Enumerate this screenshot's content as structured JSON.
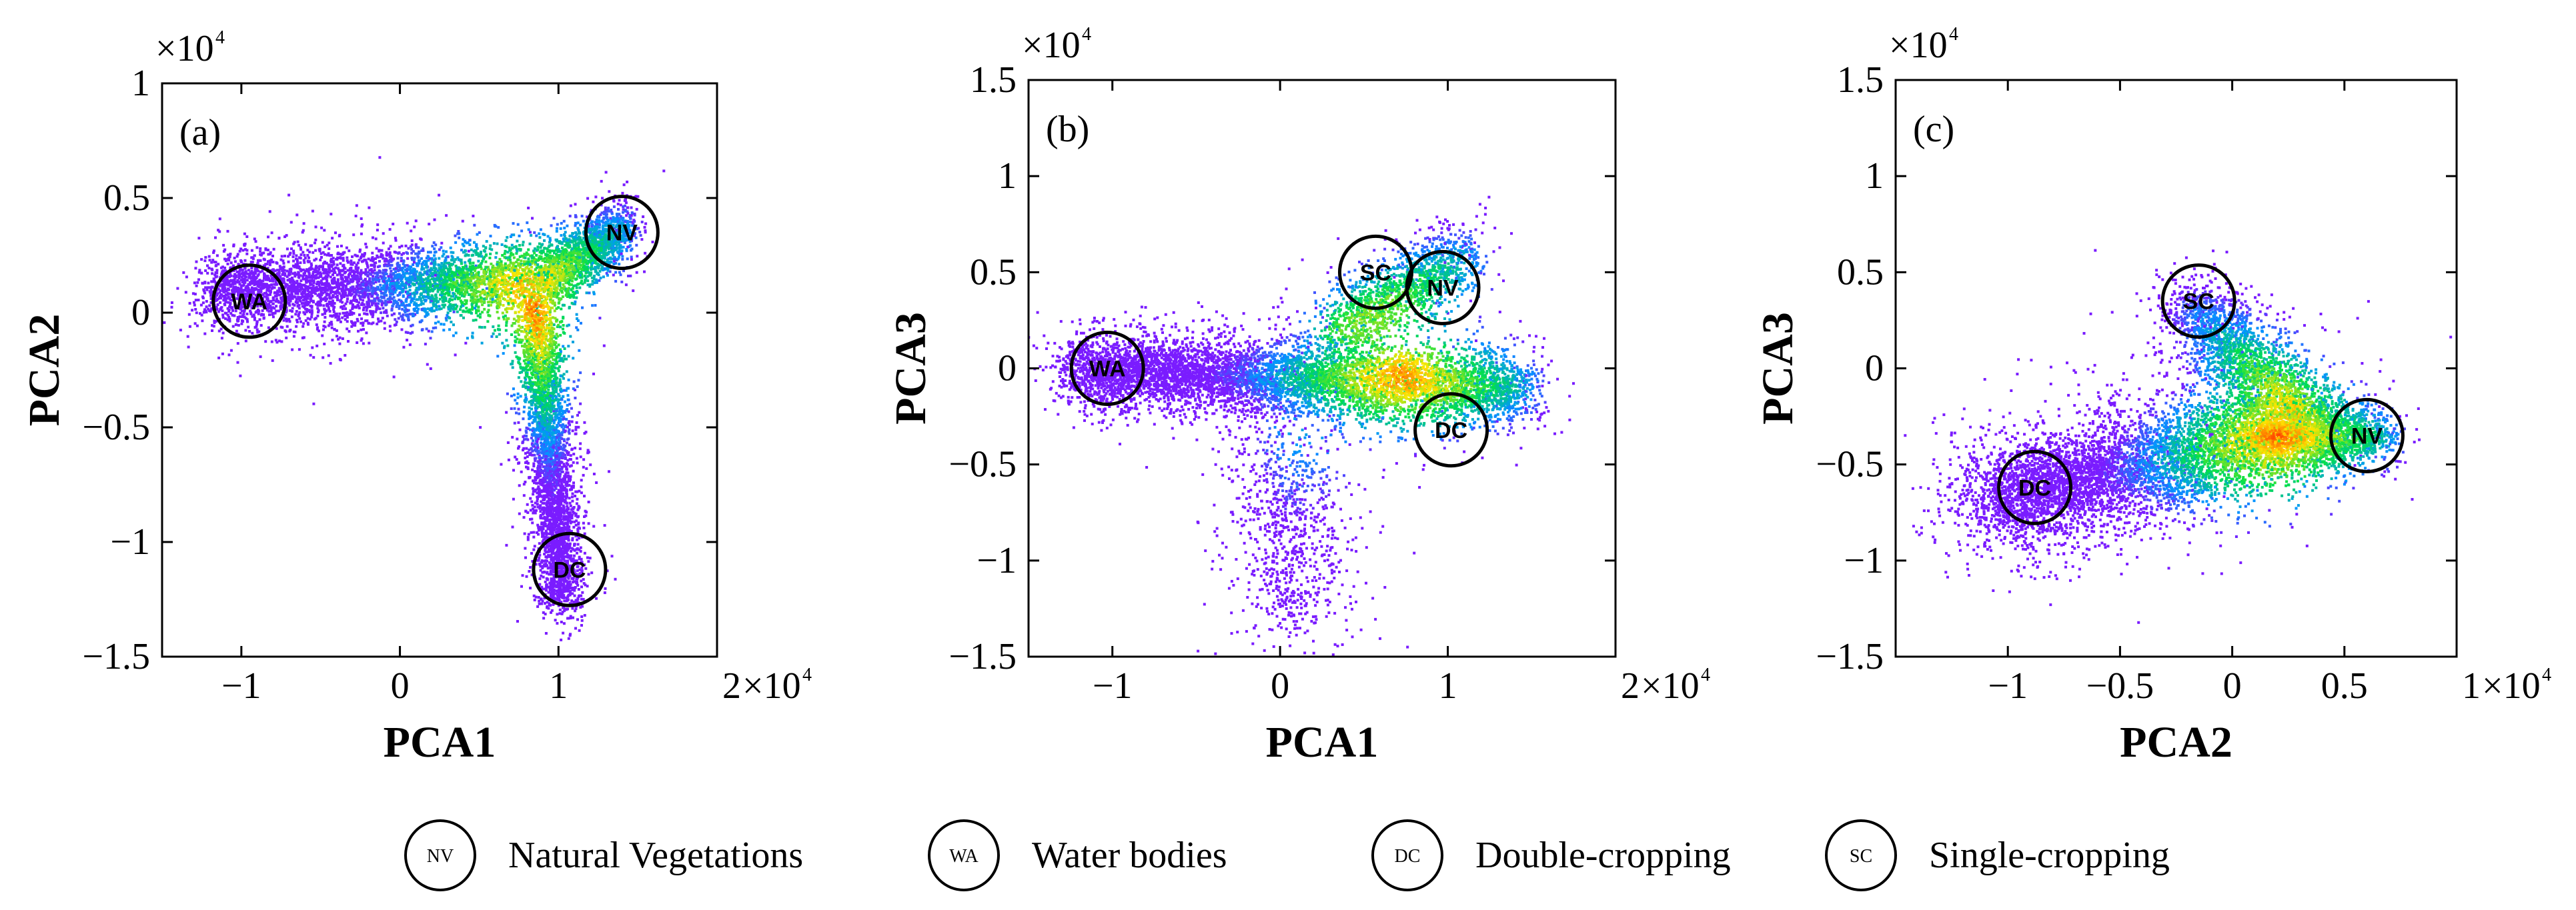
{
  "chart_data": [
    {
      "panel_label": "(a)",
      "type": "scatter",
      "xlabel": "PCA1",
      "ylabel": "PCA2",
      "xlim": [
        -1.5,
        2.0
      ],
      "ylim": [
        -1.5,
        1.0
      ],
      "x_ticks": [
        -1,
        0,
        1
      ],
      "x_tick_labels": [
        "−1",
        "0",
        "1"
      ],
      "x_end_label": "2",
      "x_exponent": "×10",
      "x_exp_power": "4",
      "y_ticks": [
        -1.5,
        -1,
        -0.5,
        0,
        0.5,
        1
      ],
      "y_tick_labels": [
        "−1.5",
        "−1",
        "−0.5",
        "0",
        "0.5",
        "1"
      ],
      "y_exponent": "×10",
      "y_exp_power": "4",
      "markers": [
        {
          "code": "WA",
          "x": -0.95,
          "y": 0.05
        },
        {
          "code": "NV",
          "x": 1.4,
          "y": 0.35
        },
        {
          "code": "DC",
          "x": 1.07,
          "y": -1.12
        }
      ],
      "density_arms": [
        {
          "from": [
            -1.2,
            0.1
          ],
          "to": [
            0.9,
            0.15
          ],
          "width": 0.18,
          "n": 4500
        },
        {
          "from": [
            0.9,
            0.15
          ],
          "to": [
            1.42,
            0.38
          ],
          "width": 0.14,
          "n": 1800
        },
        {
          "from": [
            0.85,
            0.05
          ],
          "to": [
            1.02,
            -1.25
          ],
          "width": 0.15,
          "n": 3800
        }
      ],
      "density_core": [
        0.8,
        0.02
      ]
    },
    {
      "panel_label": "(b)",
      "type": "scatter",
      "xlabel": "PCA1",
      "ylabel": "PCA3",
      "xlim": [
        -1.5,
        2.0
      ],
      "ylim": [
        -1.5,
        1.5
      ],
      "x_ticks": [
        -1,
        0,
        1
      ],
      "x_tick_labels": [
        "−1",
        "0",
        "1"
      ],
      "x_end_label": "2",
      "x_exponent": "×10",
      "x_exp_power": "4",
      "y_ticks": [
        -1.5,
        -1,
        -0.5,
        0,
        0.5,
        1,
        1.5
      ],
      "y_tick_labels": [
        "−1.5",
        "−1",
        "−0.5",
        "0",
        "0.5",
        "1",
        "1.5"
      ],
      "y_exponent": "×10",
      "y_exp_power": "4",
      "markers": [
        {
          "code": "WA",
          "x": -1.03,
          "y": 0.0
        },
        {
          "code": "SC",
          "x": 0.57,
          "y": 0.5
        },
        {
          "code": "NV",
          "x": 0.97,
          "y": 0.42
        },
        {
          "code": "DC",
          "x": 1.02,
          "y": -0.32
        }
      ],
      "density_arms": [
        {
          "from": [
            -1.25,
            0.0
          ],
          "to": [
            1.45,
            -0.1
          ],
          "width": 0.2,
          "n": 7000
        },
        {
          "from": [
            0.3,
            0.2
          ],
          "to": [
            1.1,
            0.6
          ],
          "width": 0.2,
          "n": 1500
        },
        {
          "from": [
            0.0,
            -0.4
          ],
          "to": [
            0.1,
            -1.3
          ],
          "width": 0.35,
          "n": 900
        }
      ],
      "density_core": [
        0.72,
        0.02
      ]
    },
    {
      "panel_label": "(c)",
      "type": "scatter",
      "xlabel": "PCA2",
      "ylabel": "PCA3",
      "xlim": [
        -1.5,
        1.0
      ],
      "ylim": [
        -1.5,
        1.5
      ],
      "x_ticks": [
        -1,
        -0.5,
        0,
        0.5
      ],
      "x_tick_labels": [
        "−1",
        "−0.5",
        "0",
        "0.5"
      ],
      "x_end_label": "1",
      "x_exponent": "×10",
      "x_exp_power": "4",
      "y_ticks": [
        -1.5,
        -1,
        -0.5,
        0,
        0.5,
        1,
        1.5
      ],
      "y_tick_labels": [
        "−1.5",
        "−1",
        "−0.5",
        "0",
        "0.5",
        "1",
        "1.5"
      ],
      "y_exponent": "×10",
      "y_exp_power": "4",
      "markers": [
        {
          "code": "SC",
          "x": -0.15,
          "y": 0.35
        },
        {
          "code": "NV",
          "x": 0.6,
          "y": -0.35
        },
        {
          "code": "DC",
          "x": -0.88,
          "y": -0.62
        }
      ],
      "density_arms": [
        {
          "from": [
            -1.1,
            -0.7
          ],
          "to": [
            0.3,
            -0.3
          ],
          "width": 0.3,
          "n": 6000
        },
        {
          "from": [
            -0.2,
            0.35
          ],
          "to": [
            0.4,
            -0.35
          ],
          "width": 0.2,
          "n": 2500
        },
        {
          "from": [
            0.1,
            -0.35
          ],
          "to": [
            0.65,
            -0.35
          ],
          "width": 0.16,
          "n": 1800
        }
      ],
      "density_core": [
        0.2,
        -0.35
      ]
    }
  ],
  "legend": [
    {
      "code": "NV",
      "label": "Natural Vegetations"
    },
    {
      "code": "WA",
      "label": "Water bodies"
    },
    {
      "code": "DC",
      "label": "Double-cropping"
    },
    {
      "code": "SC",
      "label": "Single-cropping"
    }
  ],
  "colors": {
    "axis": "#000000",
    "density_low": "#7a1cff",
    "density_mid": "#00e04a",
    "density_high": "#ff2a00"
  }
}
